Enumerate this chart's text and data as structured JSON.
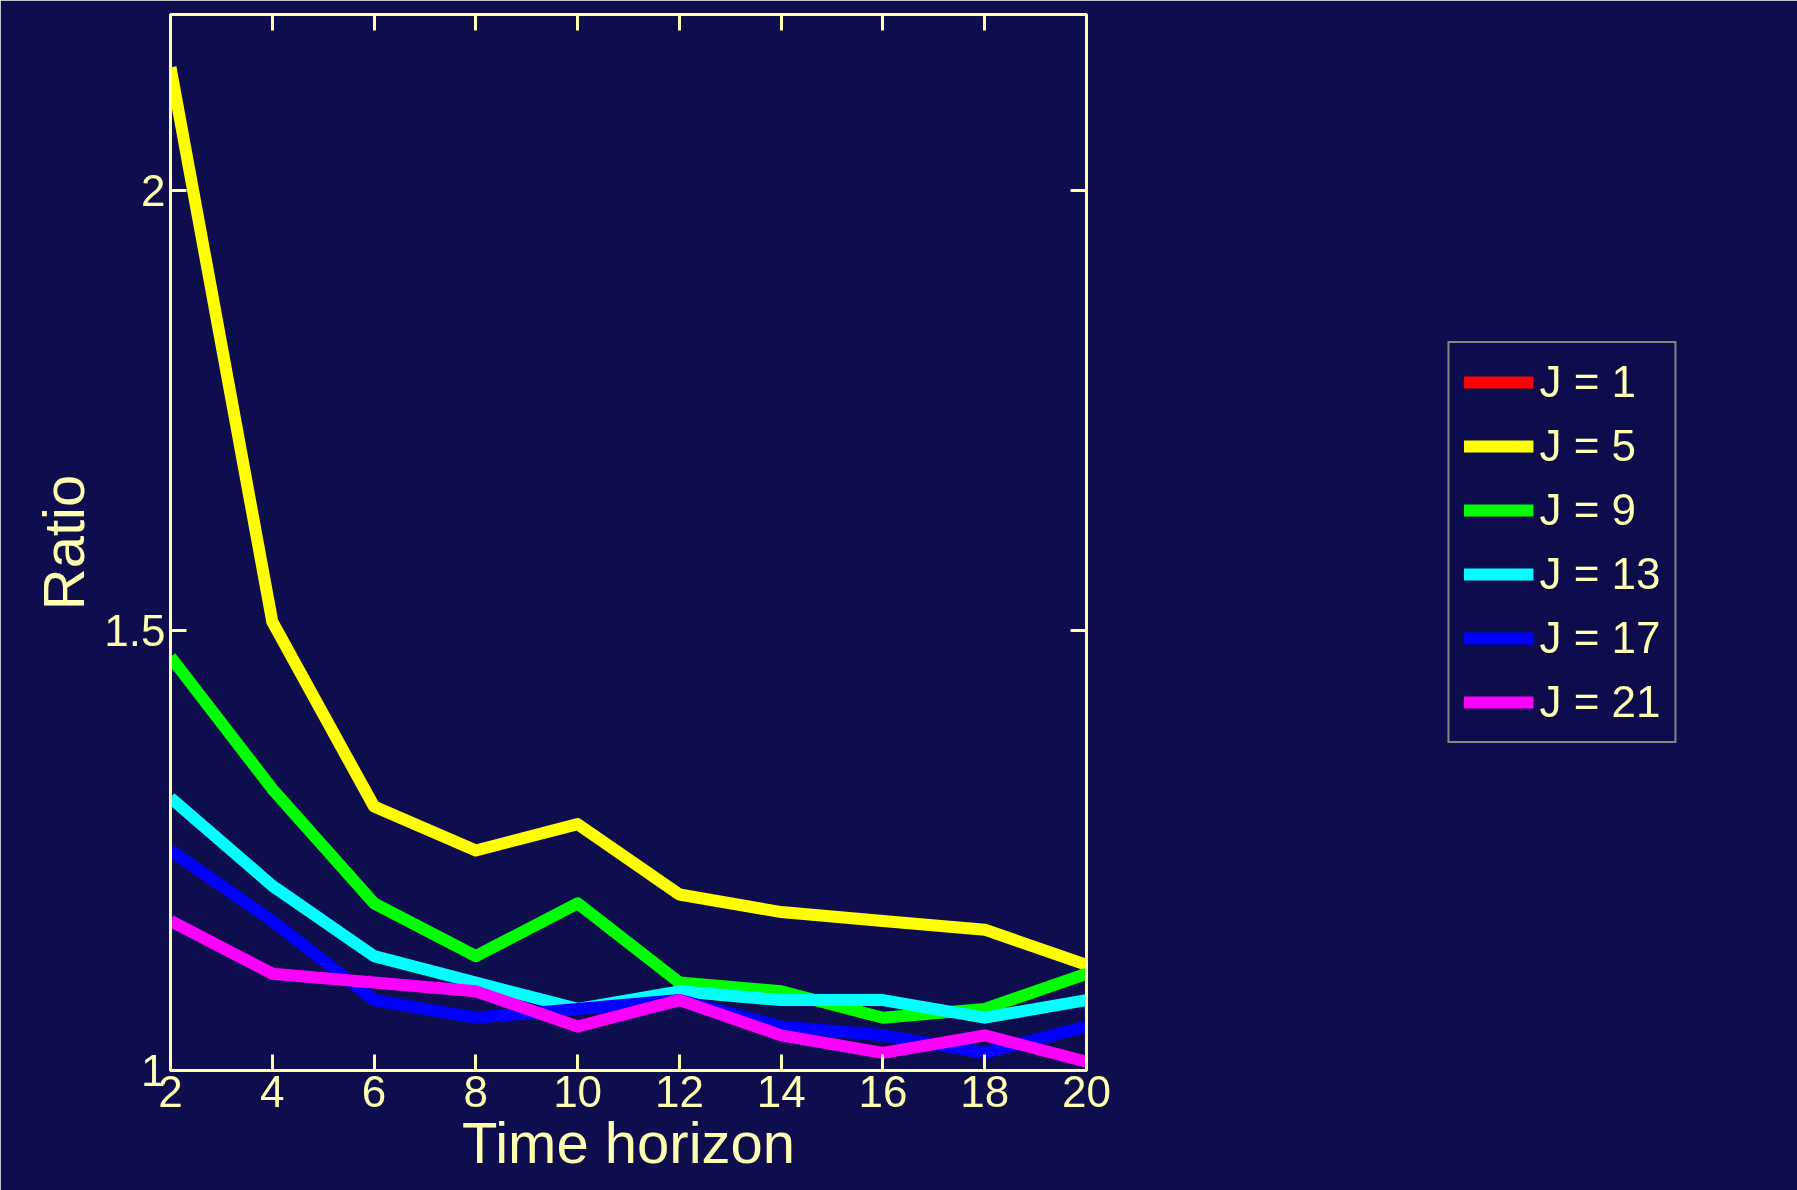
{
  "chart_data": {
    "type": "line",
    "xlabel": "Time horizon",
    "ylabel": "Ratio",
    "x": [
      2,
      4,
      6,
      8,
      10,
      12,
      14,
      16,
      18,
      20
    ],
    "xlim": [
      2,
      20
    ],
    "xticks": [
      2,
      4,
      6,
      8,
      10,
      12,
      14,
      16,
      18,
      20
    ],
    "ylim": [
      1,
      2.2
    ],
    "yticks": [
      1,
      1.5,
      2
    ],
    "grid": false,
    "legend": "right",
    "series": [
      {
        "name": "J = 1",
        "color": "#ff0000",
        "values": [
          null,
          null,
          null,
          null,
          null,
          null,
          null,
          null,
          null,
          null
        ]
      },
      {
        "name": "J = 5",
        "color": "#ffff00",
        "values": [
          2.14,
          1.51,
          1.3,
          1.25,
          1.28,
          1.2,
          1.18,
          1.17,
          1.16,
          1.12
        ]
      },
      {
        "name": "J = 9",
        "color": "#00ff00",
        "values": [
          1.47,
          1.32,
          1.19,
          1.13,
          1.19,
          1.1,
          1.09,
          1.06,
          1.07,
          1.11
        ]
      },
      {
        "name": "J = 13",
        "color": "#00ffff",
        "values": [
          1.31,
          1.21,
          1.13,
          1.1,
          1.07,
          1.09,
          1.08,
          1.08,
          1.06,
          1.08
        ]
      },
      {
        "name": "J = 17",
        "color": "#0000ff",
        "values": [
          1.25,
          1.17,
          1.08,
          1.06,
          1.07,
          1.08,
          1.05,
          1.04,
          1.02,
          1.05
        ]
      },
      {
        "name": "J = 21",
        "color": "#ff00ff",
        "values": [
          1.17,
          1.11,
          1.1,
          1.09,
          1.05,
          1.08,
          1.04,
          1.02,
          1.04,
          1.01
        ]
      }
    ]
  }
}
